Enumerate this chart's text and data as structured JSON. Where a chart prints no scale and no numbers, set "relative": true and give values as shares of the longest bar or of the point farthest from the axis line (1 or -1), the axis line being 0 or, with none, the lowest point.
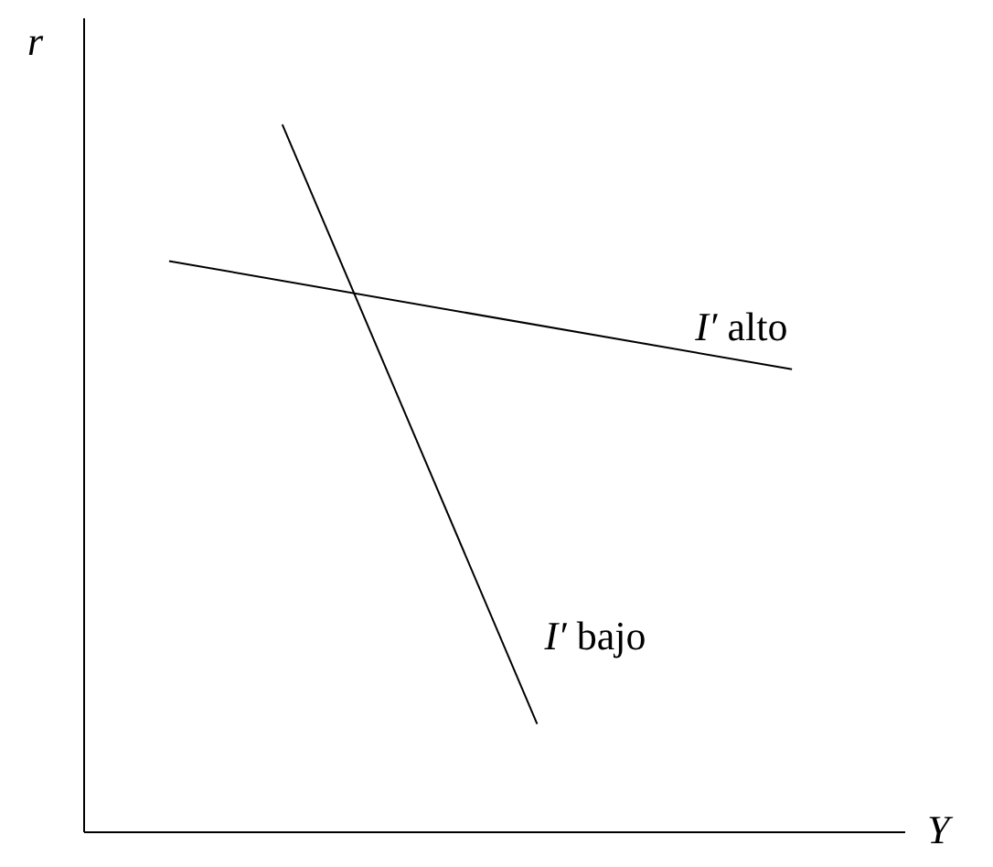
{
  "chart_data": {
    "type": "line",
    "relative": true,
    "xlabel": "Y",
    "ylabel": "r",
    "categories": [
      null,
      null,
      null,
      null,
      null,
      null,
      null,
      null,
      null,
      null,
      null,
      null,
      null,
      null,
      null,
      null,
      null,
      null,
      null,
      null,
      null,
      null,
      null,
      null,
      null,
      null,
      null,
      null,
      null,
      null
    ],
    "series": [
      {
        "name": "I′ alto",
        "color": "#000000",
        "values": [
          null,
          null,
          null,
          0.807,
          null,
          null,
          null,
          null,
          null,
          null,
          null,
          null,
          null,
          null,
          null,
          null,
          null,
          null,
          null,
          null,
          null,
          null,
          null,
          null,
          null,
          0.654,
          null,
          null,
          null,
          null
        ]
      },
      {
        "name": "I′ bajo",
        "color": "#000000",
        "values": [
          null,
          null,
          null,
          null,
          null,
          null,
          null,
          1,
          null,
          null,
          null,
          null,
          null,
          null,
          null,
          null,
          0.153,
          null,
          null,
          null,
          null,
          null,
          null,
          null,
          null,
          null,
          null,
          null,
          null,
          null
        ]
      }
    ]
  }
}
